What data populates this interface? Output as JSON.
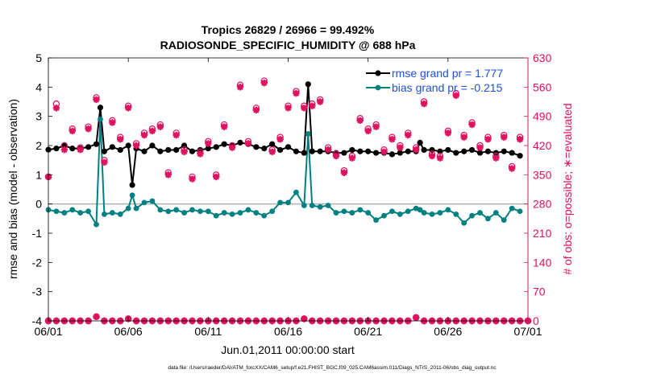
{
  "colors": {
    "rmse": "#000000",
    "bias": "#008080",
    "obs": "#e0115f",
    "legend_text": "#1f4fe0",
    "zero_line": "#b0b0b0",
    "axis": "#000000"
  },
  "chart_data": {
    "type": "line",
    "title": "Tropics 26829 / 26966 = 99.492%",
    "subtitle": "RADIOSONDE_SPECIFIC_HUMIDITY @ 688 hPa",
    "xlabel": "Jun.01,2011 00:00:00 start",
    "ylabel_left": "rmse and bias (model - observation)",
    "ylabel_right": "# of obs: o=possible; ∗=evaluated",
    "footnote": "data file: /Users/raeder/DAI/ATM_forcXX/CAM6_setup/f.e21.FHIST_BGC.f09_025.CAM6assim.011/Diags_NTrS_2011-06/obs_diag_output.nc",
    "xlim": [
      0,
      30
    ],
    "ylim_left": [
      -4,
      5
    ],
    "ylim_right": [
      0,
      630
    ],
    "x_ticks": [
      0,
      5,
      10,
      15,
      20,
      25,
      30
    ],
    "x_tick_labels": [
      "06/01",
      "06/06",
      "06/11",
      "06/16",
      "06/21",
      "06/26",
      "07/01"
    ],
    "y_ticks_left": [
      -4,
      -3,
      -2,
      -1,
      0,
      1,
      2,
      3,
      4,
      5
    ],
    "y_tick_labels_left": [
      "-4",
      "-3",
      "-2",
      "-1",
      "0",
      "1",
      "2",
      "3",
      "4",
      "5"
    ],
    "y_ticks_right": [
      0,
      70,
      140,
      210,
      280,
      350,
      420,
      490,
      560,
      630
    ],
    "y_tick_labels_right": [
      "0",
      "70",
      "140",
      "210",
      "280",
      "350",
      "420",
      "490",
      "560",
      "630"
    ],
    "legend": {
      "location": "top-right",
      "entries": [
        "rmse grand pr = 1.777",
        "bias grand pr = -0.215"
      ]
    },
    "series": [
      {
        "name": "rmse",
        "x": [
          0,
          0.5,
          1,
          1.5,
          2,
          2.5,
          3,
          3.25,
          3.5,
          4,
          4.5,
          5,
          5.25,
          5.5,
          6,
          6.5,
          7,
          7.5,
          8,
          8.5,
          9,
          9.5,
          10,
          10.5,
          11,
          11.5,
          12,
          12.5,
          13,
          13.5,
          14,
          14.5,
          15,
          15.5,
          16,
          16.25,
          16.5,
          17,
          17.5,
          18,
          18.5,
          19,
          19.5,
          20,
          20.5,
          21,
          21.5,
          22,
          22.5,
          23,
          23.25,
          23.5,
          24,
          24.5,
          25,
          25.5,
          26,
          26.5,
          27,
          27.5,
          28,
          28.5,
          29,
          29.5
        ],
        "values": [
          1.86,
          1.9,
          2.0,
          1.9,
          1.9,
          1.95,
          2.05,
          3.3,
          1.8,
          1.95,
          1.85,
          2.0,
          0.65,
          1.9,
          1.8,
          2.0,
          1.8,
          1.85,
          1.85,
          2.0,
          1.8,
          1.85,
          1.9,
          1.95,
          2.05,
          2.0,
          2.1,
          2.05,
          1.95,
          1.9,
          2.05,
          1.85,
          1.95,
          1.8,
          1.75,
          4.1,
          1.8,
          1.8,
          1.8,
          1.75,
          1.75,
          1.85,
          1.8,
          1.8,
          1.75,
          1.75,
          1.7,
          1.75,
          1.8,
          1.8,
          2.1,
          1.85,
          1.85,
          1.8,
          1.85,
          1.75,
          1.8,
          1.85,
          1.75,
          1.8,
          1.75,
          1.8,
          1.75,
          1.65
        ]
      },
      {
        "name": "bias",
        "x": [
          0,
          0.5,
          1,
          1.5,
          2,
          2.5,
          3,
          3.25,
          3.5,
          4,
          4.5,
          5,
          5.25,
          5.5,
          6,
          6.5,
          7,
          7.5,
          8,
          8.5,
          9,
          9.5,
          10,
          10.5,
          11,
          11.5,
          12,
          12.5,
          13,
          13.5,
          14,
          14.5,
          15,
          15.5,
          16,
          16.25,
          16.5,
          17,
          17.5,
          18,
          18.5,
          19,
          19.5,
          20,
          20.5,
          21,
          21.5,
          22,
          22.5,
          23,
          23.25,
          23.5,
          24,
          24.5,
          25,
          25.5,
          26,
          26.5,
          27,
          27.5,
          28,
          28.5,
          29,
          29.5
        ],
        "values": [
          -0.2,
          -0.25,
          -0.3,
          -0.2,
          -0.3,
          -0.25,
          -0.7,
          2.9,
          -0.35,
          -0.3,
          -0.35,
          -0.15,
          0.3,
          -0.15,
          0.05,
          0.1,
          -0.2,
          -0.25,
          -0.2,
          -0.3,
          -0.2,
          -0.25,
          -0.25,
          -0.4,
          -0.3,
          -0.35,
          -0.3,
          -0.2,
          -0.3,
          -0.4,
          -0.25,
          0.05,
          0.05,
          0.4,
          -0.05,
          2.4,
          -0.05,
          -0.1,
          -0.05,
          -0.3,
          -0.25,
          -0.3,
          -0.2,
          -0.3,
          -0.55,
          -0.4,
          -0.25,
          -0.35,
          -0.25,
          -0.15,
          -0.2,
          -0.3,
          -0.35,
          -0.3,
          -0.2,
          -0.35,
          -0.65,
          -0.4,
          -0.3,
          -0.5,
          -0.3,
          -0.55,
          -0.15,
          -0.25
        ]
      },
      {
        "name": "obs_possible",
        "axis": "right",
        "x": [
          0,
          0.5,
          1,
          1.5,
          2,
          2.5,
          3,
          3.5,
          4,
          4.5,
          5,
          5.5,
          6,
          6.5,
          7,
          7.5,
          8,
          8.5,
          9,
          9.5,
          10,
          10.5,
          11,
          11.5,
          12,
          12.5,
          13,
          13.5,
          14,
          14.5,
          15,
          15.5,
          16,
          16.5,
          17,
          17.5,
          18,
          18.5,
          19,
          19.5,
          20,
          20.5,
          21,
          21.5,
          22,
          22.5,
          23,
          23.5,
          24,
          24.5,
          25,
          25.5,
          26,
          26.5,
          27,
          27.5,
          28,
          28.5,
          29,
          29.5
        ],
        "values": [
          345,
          520,
          420,
          460,
          415,
          465,
          535,
          385,
          480,
          440,
          515,
          425,
          450,
          460,
          470,
          355,
          450,
          410,
          345,
          405,
          430,
          350,
          470,
          420,
          565,
          430,
          510,
          575,
          410,
          440,
          515,
          550,
          515,
          520,
          530,
          415,
          400,
          360,
          395,
          485,
          460,
          470,
          410,
          440,
          420,
          450,
          415,
          525,
          400,
          395,
          455,
          545,
          445,
          475,
          420,
          440,
          395,
          445,
          370,
          440
        ]
      },
      {
        "name": "obs_evaluated",
        "axis": "right",
        "x": [
          0,
          0.5,
          1,
          1.5,
          2,
          2.5,
          3,
          3.5,
          4,
          4.5,
          5,
          5.5,
          6,
          6.5,
          7,
          7.5,
          8,
          8.5,
          9,
          9.5,
          10,
          10.5,
          11,
          11.5,
          12,
          12.5,
          13,
          13.5,
          14,
          14.5,
          15,
          15.5,
          16,
          16.5,
          17,
          17.5,
          18,
          18.5,
          19,
          19.5,
          20,
          20.5,
          21,
          21.5,
          22,
          22.5,
          23,
          23.5,
          24,
          24.5,
          25,
          25.5,
          26,
          26.5,
          27,
          27.5,
          28,
          28.5,
          29,
          29.5
        ],
        "values": [
          345,
          510,
          410,
          455,
          410,
          460,
          530,
          380,
          475,
          435,
          510,
          420,
          445,
          455,
          465,
          350,
          445,
          405,
          340,
          400,
          425,
          345,
          465,
          415,
          560,
          425,
          505,
          570,
          405,
          435,
          510,
          545,
          510,
          515,
          525,
          410,
          395,
          355,
          390,
          480,
          455,
          465,
          405,
          435,
          415,
          445,
          410,
          520,
          395,
          390,
          450,
          540,
          440,
          470,
          415,
          435,
          390,
          440,
          365,
          435
        ]
      },
      {
        "name": "obs_bottom_possible",
        "axis": "right",
        "x": [
          0,
          0.5,
          1,
          1.5,
          2,
          2.5,
          3,
          3.5,
          4,
          4.5,
          5,
          5.5,
          6,
          6.5,
          7,
          7.5,
          8,
          8.5,
          9,
          9.5,
          10,
          10.5,
          11,
          11.5,
          12,
          12.5,
          13,
          13.5,
          14,
          14.5,
          15,
          15.5,
          16,
          16.5,
          17,
          17.5,
          18,
          18.5,
          19,
          19.5,
          20,
          20.5,
          21,
          21.5,
          22,
          22.5,
          23,
          23.5,
          24,
          24.5,
          25,
          25.5,
          26,
          26.5,
          27,
          27.5,
          28,
          28.5,
          29,
          29.5,
          30
        ],
        "values": [
          0,
          0,
          0,
          0,
          0,
          0,
          10,
          0,
          0,
          0,
          5,
          0,
          0,
          0,
          0,
          0,
          0,
          0,
          0,
          0,
          0,
          0,
          0,
          0,
          0,
          0,
          0,
          0,
          0,
          0,
          0,
          0,
          5,
          0,
          0,
          0,
          0,
          0,
          0,
          0,
          0,
          0,
          0,
          0,
          0,
          0,
          8,
          0,
          0,
          0,
          0,
          0,
          0,
          0,
          0,
          0,
          0,
          0,
          0,
          0,
          0
        ]
      }
    ]
  }
}
